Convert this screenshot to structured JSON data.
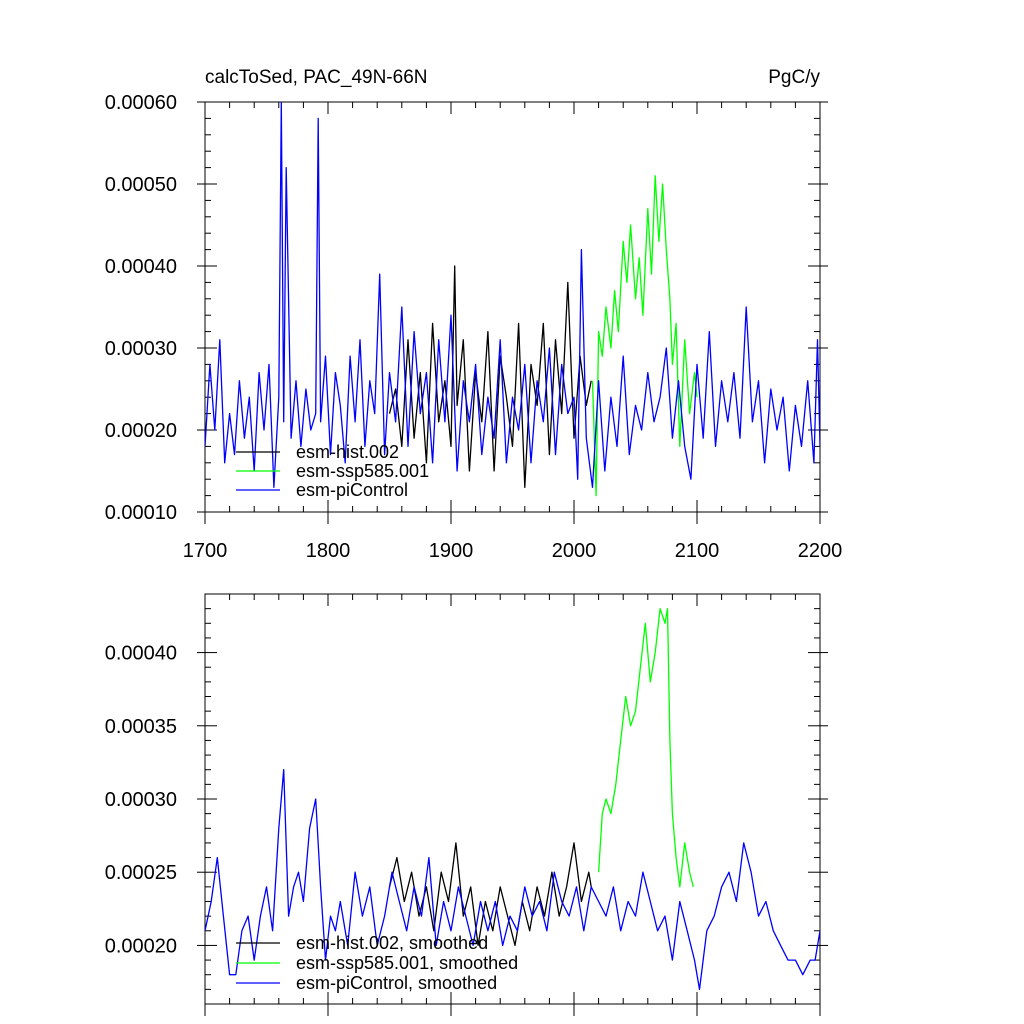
{
  "chart_data": [
    {
      "type": "line",
      "title": "calcToSed, PAC_49N-66N",
      "units": "PgC/y",
      "xlim": [
        1700,
        2200
      ],
      "ylim": [
        0.0001,
        0.0006
      ],
      "x_ticks": [
        1700,
        1800,
        1900,
        2000,
        2100,
        2200
      ],
      "x_tick_labels": [
        "1700",
        "1800",
        "1900",
        "2000",
        "2100",
        "2200"
      ],
      "y_ticks": [
        0.0001,
        0.0002,
        0.0003,
        0.0004,
        0.0005,
        0.0006
      ],
      "y_tick_labels": [
        "0.00010",
        "0.00020",
        "0.00030",
        "0.00040",
        "0.00050",
        "0.00060"
      ],
      "legend_position": "lower-left",
      "series": [
        {
          "name": "esm-hist.002",
          "color": "#000000",
          "x": [
            1850,
            1855,
            1860,
            1865,
            1870,
            1875,
            1880,
            1885,
            1890,
            1895,
            1900,
            1903,
            1905,
            1910,
            1915,
            1920,
            1925,
            1930,
            1935,
            1940,
            1945,
            1950,
            1955,
            1960,
            1965,
            1970,
            1975,
            1980,
            1985,
            1990,
            1995,
            2000,
            2005,
            2010,
            2014
          ],
          "y": [
            0.00022,
            0.00025,
            0.00018,
            0.00031,
            0.00019,
            0.00027,
            0.00016,
            0.00033,
            0.00021,
            0.00026,
            0.00018,
            0.0004,
            0.00023,
            0.00031,
            0.00015,
            0.00027,
            0.00021,
            0.00032,
            0.00015,
            0.00029,
            0.00024,
            0.00018,
            0.00033,
            0.00013,
            0.00028,
            0.00023,
            0.00033,
            0.00017,
            0.00031,
            0.00022,
            0.00038,
            0.00019,
            0.00029,
            0.00023,
            0.00026
          ]
        },
        {
          "name": "esm-ssp585.001",
          "color": "#00ff00",
          "x": [
            2015,
            2018,
            2020,
            2023,
            2026,
            2030,
            2033,
            2036,
            2040,
            2043,
            2046,
            2050,
            2053,
            2056,
            2060,
            2063,
            2066,
            2069,
            2072,
            2075,
            2078,
            2080,
            2083,
            2086,
            2090,
            2094,
            2098,
            2100
          ],
          "y": [
            0.00026,
            0.00012,
            0.00032,
            0.00029,
            0.00035,
            0.0003,
            0.00037,
            0.00032,
            0.00043,
            0.00038,
            0.00045,
            0.00036,
            0.00041,
            0.00034,
            0.00047,
            0.00039,
            0.00051,
            0.00043,
            0.0005,
            0.00042,
            0.00036,
            0.00028,
            0.00033,
            0.00018,
            0.00031,
            0.00022,
            0.00027,
            0.00024
          ]
        },
        {
          "name": "esm-piControl",
          "color": "#0000ff",
          "x": [
            1700,
            1704,
            1708,
            1712,
            1716,
            1720,
            1724,
            1728,
            1732,
            1736,
            1740,
            1744,
            1748,
            1752,
            1756,
            1760,
            1762,
            1764,
            1766,
            1770,
            1774,
            1778,
            1782,
            1786,
            1790,
            1792,
            1794,
            1798,
            1802,
            1806,
            1810,
            1814,
            1818,
            1822,
            1826,
            1830,
            1834,
            1838,
            1842,
            1846,
            1850,
            1855,
            1860,
            1865,
            1870,
            1875,
            1880,
            1885,
            1890,
            1895,
            1900,
            1905,
            1910,
            1915,
            1920,
            1925,
            1930,
            1935,
            1940,
            1945,
            1950,
            1955,
            1960,
            1965,
            1970,
            1975,
            1980,
            1985,
            1990,
            1995,
            2000,
            2003,
            2006,
            2010,
            2015,
            2020,
            2025,
            2030,
            2035,
            2040,
            2045,
            2050,
            2055,
            2060,
            2065,
            2070,
            2075,
            2080,
            2085,
            2090,
            2095,
            2100,
            2105,
            2110,
            2115,
            2120,
            2125,
            2130,
            2135,
            2140,
            2145,
            2150,
            2155,
            2160,
            2165,
            2170,
            2175,
            2180,
            2185,
            2190,
            2195,
            2198,
            2200
          ],
          "y": [
            0.00018,
            0.00028,
            0.0002,
            0.00031,
            0.00016,
            0.00022,
            0.00017,
            0.00026,
            0.00019,
            0.00024,
            0.00015,
            0.00027,
            0.0002,
            0.00028,
            0.00013,
            0.00024,
            0.0006,
            0.00021,
            0.00052,
            0.00019,
            0.00026,
            0.00018,
            0.00025,
            0.0002,
            0.00022,
            0.00058,
            0.00021,
            0.00029,
            0.00017,
            0.00027,
            0.00023,
            0.00016,
            0.00029,
            0.00021,
            0.00031,
            0.00018,
            0.00026,
            0.00022,
            0.00039,
            0.00017,
            0.00027,
            0.00021,
            0.00035,
            0.00018,
            0.00032,
            0.00022,
            0.00027,
            0.00016,
            0.00031,
            0.00021,
            0.00034,
            0.00015,
            0.00026,
            0.00021,
            0.00028,
            0.00017,
            0.00024,
            0.00019,
            0.00031,
            0.00016,
            0.00024,
            0.0002,
            0.00028,
            0.00016,
            0.00026,
            0.00021,
            0.0003,
            0.00017,
            0.00028,
            0.00022,
            0.00024,
            0.00014,
            0.00042,
            0.00019,
            0.00013,
            0.00026,
            0.00015,
            0.00024,
            0.00018,
            0.00029,
            0.00017,
            0.00023,
            0.0002,
            0.00027,
            0.00021,
            0.00024,
            0.0003,
            0.00019,
            0.00026,
            0.00018,
            0.00014,
            0.00028,
            0.00019,
            0.00032,
            0.00018,
            0.00026,
            0.00021,
            0.00027,
            0.00019,
            0.00035,
            0.00021,
            0.00026,
            0.00016,
            0.00025,
            0.0002,
            0.00024,
            0.00015,
            0.00023,
            0.00018,
            0.00026,
            0.00016,
            0.00031,
            0.00018
          ]
        }
      ]
    },
    {
      "type": "line",
      "xlim": [
        1700,
        2200
      ],
      "ylim": [
        0.00016,
        0.00044
      ],
      "x_ticks": [
        1700,
        1800,
        1900,
        2000,
        2100,
        2200
      ],
      "y_ticks": [
        0.0002,
        0.00025,
        0.0003,
        0.00035,
        0.0004
      ],
      "y_tick_labels": [
        "0.00020",
        "0.00025",
        "0.00030",
        "0.00035",
        "0.00040"
      ],
      "legend_position": "lower-left",
      "series": [
        {
          "name": "esm-hist.002, smoothed",
          "color": "#000000",
          "x": [
            1850,
            1856,
            1862,
            1868,
            1874,
            1880,
            1886,
            1892,
            1898,
            1904,
            1910,
            1916,
            1922,
            1928,
            1934,
            1940,
            1946,
            1952,
            1958,
            1964,
            1970,
            1976,
            1982,
            1988,
            1994,
            2000,
            2006,
            2012,
            2014
          ],
          "y": [
            0.00024,
            0.00026,
            0.00023,
            0.00025,
            0.00022,
            0.00024,
            0.00021,
            0.00025,
            0.00023,
            0.00027,
            0.00022,
            0.00024,
            0.0002,
            0.00023,
            0.00021,
            0.00024,
            0.00022,
            0.0002,
            0.00023,
            0.00021,
            0.00024,
            0.00022,
            0.00025,
            0.00022,
            0.00024,
            0.00027,
            0.00023,
            0.00025,
            0.00024
          ]
        },
        {
          "name": "esm-ssp585.001, smoothed",
          "color": "#00ff00",
          "x": [
            2020,
            2023,
            2026,
            2030,
            2034,
            2038,
            2042,
            2046,
            2050,
            2054,
            2058,
            2062,
            2066,
            2070,
            2074,
            2076,
            2078,
            2080,
            2083,
            2086,
            2090,
            2094,
            2097
          ],
          "y": [
            0.00025,
            0.00029,
            0.0003,
            0.00029,
            0.00031,
            0.00034,
            0.00037,
            0.00035,
            0.00036,
            0.00039,
            0.00042,
            0.00038,
            0.0004,
            0.00043,
            0.00042,
            0.00043,
            0.00034,
            0.00029,
            0.00026,
            0.00024,
            0.00027,
            0.00025,
            0.00024
          ]
        },
        {
          "name": "esm-piControl, smoothed",
          "color": "#0000ff",
          "x": [
            1700,
            1705,
            1710,
            1715,
            1720,
            1725,
            1730,
            1735,
            1740,
            1745,
            1750,
            1755,
            1760,
            1764,
            1768,
            1772,
            1776,
            1780,
            1785,
            1790,
            1794,
            1798,
            1802,
            1806,
            1810,
            1816,
            1822,
            1828,
            1834,
            1840,
            1846,
            1852,
            1858,
            1864,
            1870,
            1876,
            1882,
            1888,
            1894,
            1900,
            1906,
            1912,
            1918,
            1924,
            1930,
            1936,
            1942,
            1948,
            1954,
            1960,
            1966,
            1972,
            1978,
            1984,
            1990,
            1996,
            2002,
            2008,
            2014,
            2020,
            2026,
            2032,
            2038,
            2044,
            2050,
            2056,
            2062,
            2068,
            2074,
            2080,
            2086,
            2092,
            2098,
            2102,
            2108,
            2114,
            2120,
            2126,
            2132,
            2138,
            2144,
            2150,
            2156,
            2162,
            2168,
            2174,
            2180,
            2186,
            2192,
            2196,
            2200
          ],
          "y": [
            0.00021,
            0.00023,
            0.00026,
            0.00022,
            0.00018,
            0.00018,
            0.00021,
            0.00022,
            0.00019,
            0.00022,
            0.00024,
            0.00021,
            0.00028,
            0.00032,
            0.00022,
            0.00024,
            0.00025,
            0.00023,
            0.00028,
            0.0003,
            0.00024,
            0.00019,
            0.00022,
            0.00021,
            0.00023,
            0.0002,
            0.00025,
            0.00022,
            0.00024,
            0.0002,
            0.00022,
            0.00025,
            0.00023,
            0.00021,
            0.00024,
            0.00022,
            0.00026,
            0.0002,
            0.00023,
            0.00021,
            0.00024,
            0.00022,
            0.0002,
            0.00023,
            0.00021,
            0.00023,
            0.0002,
            0.00022,
            0.00021,
            0.00024,
            0.00022,
            0.00023,
            0.00021,
            0.00025,
            0.00023,
            0.00022,
            0.00024,
            0.00021,
            0.00024,
            0.00023,
            0.00022,
            0.00024,
            0.00021,
            0.00023,
            0.00022,
            0.00025,
            0.00023,
            0.00021,
            0.00022,
            0.00019,
            0.00023,
            0.00021,
            0.00019,
            0.00017,
            0.00021,
            0.00022,
            0.00024,
            0.00025,
            0.00023,
            0.00027,
            0.00025,
            0.00022,
            0.00023,
            0.00021,
            0.0002,
            0.00019,
            0.00019,
            0.00018,
            0.00019,
            0.00019,
            0.00021
          ]
        }
      ]
    }
  ]
}
